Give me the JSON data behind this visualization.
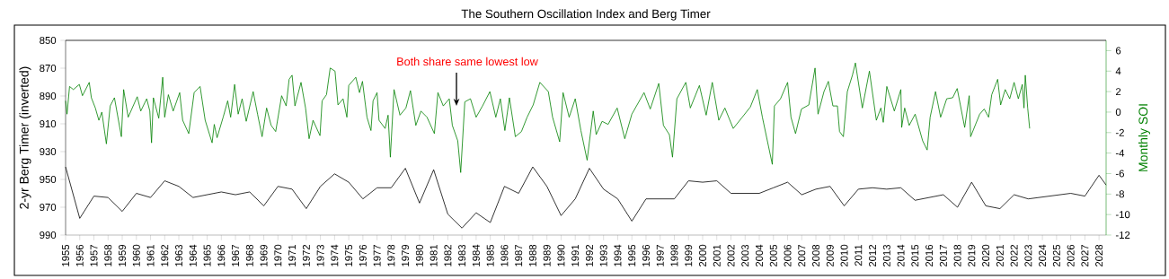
{
  "chart_data": {
    "type": "line",
    "title": "The Southern Oscillation Index and Berg Timer",
    "ylabel": "2-yr Berg Timer (inverted)",
    "y2label": "Monthly SOI",
    "xlim": [
      1955,
      2028.5
    ],
    "xticks": [
      1955,
      1956,
      1957,
      1958,
      1959,
      1960,
      1961,
      1962,
      1963,
      1964,
      1965,
      1966,
      1967,
      1968,
      1969,
      1970,
      1971,
      1972,
      1973,
      1974,
      1975,
      1976,
      1977,
      1978,
      1979,
      1980,
      1981,
      1982,
      1983,
      1984,
      1985,
      1986,
      1987,
      1988,
      1989,
      1990,
      1991,
      1992,
      1993,
      1994,
      1995,
      1996,
      1997,
      1998,
      1999,
      2000,
      2001,
      2002,
      2003,
      2004,
      2005,
      2006,
      2007,
      2008,
      2009,
      2010,
      2011,
      2012,
      2013,
      2014,
      2015,
      2016,
      2017,
      2018,
      2019,
      2020,
      2021,
      2022,
      2023,
      2024,
      2025,
      2026,
      2027,
      2028
    ],
    "ylim": [
      990,
      850
    ],
    "yticks": [
      850,
      870,
      890,
      910,
      930,
      950,
      970,
      990
    ],
    "y2lim": [
      -12,
      7
    ],
    "y2ticks": [
      -12,
      -10,
      -8,
      -6,
      -4,
      -2,
      0,
      2,
      4,
      6
    ],
    "annotations": [
      "Both share same lowest low"
    ],
    "series": [
      {
        "color": "#000000",
        "axis": "y",
        "x": [
          1955.0,
          1956.0,
          1957.0,
          1958.0,
          1959.0,
          1960.0,
          1961.0,
          1962.0,
          1963.0,
          1964.0,
          1965.0,
          1966.0,
          1967.0,
          1968.0,
          1969.0,
          1970.0,
          1971.0,
          1972.0,
          1973.0,
          1974.0,
          1975.0,
          1976.0,
          1977.0,
          1978.0,
          1979.0,
          1980.0,
          1981.0,
          1982.0,
          1983.0,
          1984.0,
          1985.0,
          1986.0,
          1987.0,
          1988.0,
          1989.0,
          1990.0,
          1991.0,
          1992.0,
          1993.0,
          1994.0,
          1995.0,
          1996.0,
          1997.0,
          1998.0,
          1999.0,
          2000.0,
          2001.0,
          2002.0,
          2003.0,
          2004.0,
          2005.0,
          2006.0,
          2007.0,
          2008.0,
          2009.0,
          2010.0,
          2011.0,
          2012.0,
          2013.0,
          2014.0,
          2015.0,
          2016.0,
          2017.0,
          2018.0,
          2019.0,
          2020.0,
          2021.0,
          2022.0,
          2023.0,
          2026.0,
          2027.0,
          2028.0,
          2028.5
        ],
        "values": [
          941,
          978,
          962,
          963,
          973,
          960,
          963,
          951,
          955,
          963,
          961,
          959,
          961,
          959,
          969,
          955,
          957,
          971,
          955,
          946,
          952,
          964,
          956,
          956,
          942,
          967,
          943,
          975,
          985,
          974,
          981,
          955,
          960,
          941,
          955,
          976,
          964,
          942,
          957,
          964,
          980,
          964,
          964,
          964,
          951,
          952,
          951,
          960,
          960,
          960,
          956,
          952,
          961,
          957,
          955,
          969,
          957,
          956,
          957,
          956,
          965,
          963,
          961,
          970,
          952,
          969,
          971,
          961,
          964,
          960,
          962,
          947,
          954
        ]
      },
      {
        "color": "#008000",
        "axis": "y2",
        "x": [
          1955.0,
          1955.1,
          1955.28,
          1955.55,
          1955.97,
          1956.19,
          1956.67,
          1956.82,
          1957.1,
          1957.35,
          1957.56,
          1957.88,
          1958.15,
          1958.45,
          1958.94,
          1959.1,
          1959.42,
          1960.06,
          1960.31,
          1960.73,
          1960.95,
          1961.07,
          1961.2,
          1961.58,
          1961.86,
          1962.0,
          1962.26,
          1962.6,
          1963.06,
          1963.27,
          1963.7,
          1964.08,
          1964.5,
          1964.86,
          1965.35,
          1965.5,
          1965.7,
          1966.13,
          1966.45,
          1966.66,
          1966.94,
          1967.19,
          1967.47,
          1967.76,
          1968.25,
          1968.56,
          1968.88,
          1969.2,
          1969.52,
          1969.84,
          1970.26,
          1970.58,
          1970.79,
          1971.0,
          1971.2,
          1971.63,
          1971.95,
          1972.2,
          1972.48,
          1972.97,
          1973.12,
          1973.43,
          1973.69,
          1974.03,
          1974.24,
          1974.6,
          1974.87,
          1975.0,
          1975.5,
          1975.76,
          1975.97,
          1976.29,
          1976.57,
          1976.72,
          1977.0,
          1977.14,
          1977.57,
          1977.78,
          1977.94,
          1978.2,
          1978.62,
          1979.04,
          1979.36,
          1979.74,
          1980.1,
          1980.53,
          1981.05,
          1981.3,
          1981.68,
          1982.1,
          1982.32,
          1982.7,
          1982.91,
          1983.2,
          1983.6,
          1984.0,
          1984.45,
          1984.97,
          1985.39,
          1985.71,
          1986.03,
          1986.35,
          1986.77,
          1987.2,
          1987.6,
          1988.03,
          1988.5,
          1989.1,
          1989.4,
          1989.9,
          1990.14,
          1990.57,
          1991.0,
          1991.4,
          1991.84,
          1992.27,
          1992.48,
          1992.9,
          1993.32,
          1993.96,
          1994.5,
          1995.0,
          1995.86,
          1996.3,
          1996.9,
          1997.23,
          1997.65,
          1997.87,
          1998.18,
          1998.81,
          1999.13,
          1999.77,
          2000.25,
          2000.68,
          2001.14,
          2001.57,
          2002.16,
          2002.74,
          2003.37,
          2003.86,
          2004.22,
          2004.92,
          2005.07,
          2005.5,
          2006.0,
          2006.24,
          2006.56,
          2006.98,
          2007.5,
          2007.94,
          2008.15,
          2008.57,
          2008.88,
          2009.2,
          2009.52,
          2009.67,
          2009.94,
          2010.22,
          2010.58,
          2010.79,
          2011.28,
          2011.78,
          2012.27,
          2012.59,
          2012.76,
          2013.01,
          2013.54,
          2014.0,
          2014.06,
          2014.27,
          2014.59,
          2015.01,
          2015.54,
          2015.86,
          2016.07,
          2016.45,
          2016.81,
          2017.24,
          2017.66,
          2017.98,
          2018.51,
          2018.83,
          2018.93,
          2019.57,
          2019.89,
          2020.2,
          2020.42,
          2020.84,
          2021.05,
          2021.37,
          2021.69,
          2022.0,
          2022.3,
          2022.58,
          2022.7,
          2022.79,
          2022.96,
          2023.1
        ],
        "values": [
          1.1,
          -0.2,
          2.5,
          2.2,
          2.7,
          1.6,
          2.9,
          1.4,
          0.4,
          -0.8,
          0.0,
          -3.1,
          0.6,
          1.4,
          -2.4,
          2.2,
          -0.5,
          1.5,
          0.1,
          1.3,
          0.1,
          -3.0,
          1.4,
          -0.6,
          3.4,
          -0.5,
          1.7,
          0.1,
          1.9,
          -0.8,
          -2.1,
          1.9,
          2.5,
          -0.8,
          -3.0,
          -1.2,
          -2.5,
          -0.5,
          1.1,
          -0.5,
          2.7,
          -0.2,
          1.3,
          -0.9,
          2.0,
          -0.2,
          -2.4,
          0.4,
          -1.3,
          -1.9,
          1.6,
          0.6,
          3.2,
          3.6,
          0.6,
          2.9,
          0.4,
          -2.6,
          -0.8,
          -2.3,
          1.1,
          1.7,
          4.3,
          4.0,
          0.7,
          1.3,
          -0.5,
          2.6,
          3.4,
          1.9,
          3.0,
          -0.5,
          -1.8,
          1.1,
          1.9,
          -0.8,
          -1.6,
          -0.3,
          -4.4,
          2.2,
          -0.3,
          0.4,
          2.1,
          -1.3,
          0.1,
          -0.5,
          -2.1,
          1.9,
          0.6,
          1.3,
          -1.3,
          -2.8,
          -5.9,
          1.0,
          1.3,
          -0.5,
          0.6,
          2.0,
          -0.5,
          1.3,
          -1.8,
          1.4,
          -2.4,
          -1.9,
          -0.5,
          0.7,
          2.9,
          2.0,
          -0.5,
          -2.9,
          1.9,
          -0.5,
          1.3,
          -1.8,
          -4.7,
          0.1,
          -2.2,
          -0.9,
          -1.2,
          0.4,
          -2.6,
          -0.2,
          1.9,
          0.3,
          2.8,
          -1.3,
          -2.2,
          -4.4,
          1.3,
          2.9,
          0.4,
          2.6,
          -0.3,
          2.9,
          -0.8,
          0.4,
          -1.6,
          -0.6,
          0.5,
          2.2,
          -0.5,
          -5.1,
          0.6,
          1.3,
          2.9,
          -0.5,
          -2.1,
          0.3,
          0.7,
          4.3,
          -0.2,
          2.0,
          3.0,
          0.6,
          0.6,
          -1.9,
          -2.4,
          2.0,
          3.6,
          4.8,
          0.4,
          4.0,
          -0.8,
          0.4,
          -1.0,
          2.5,
          0.1,
          2.2,
          -1.5,
          0.4,
          -1.3,
          -0.2,
          -2.8,
          -3.7,
          -0.5,
          2.0,
          -0.5,
          1.3,
          1.4,
          2.3,
          -1.5,
          1.6,
          -2.4,
          -0.2,
          0.3,
          -0.5,
          1.7,
          3.2,
          0.7,
          2.2,
          1.3,
          2.9,
          1.3,
          2.7,
          0.4,
          3.6,
          0.4,
          -1.6
        ]
      }
    ]
  }
}
